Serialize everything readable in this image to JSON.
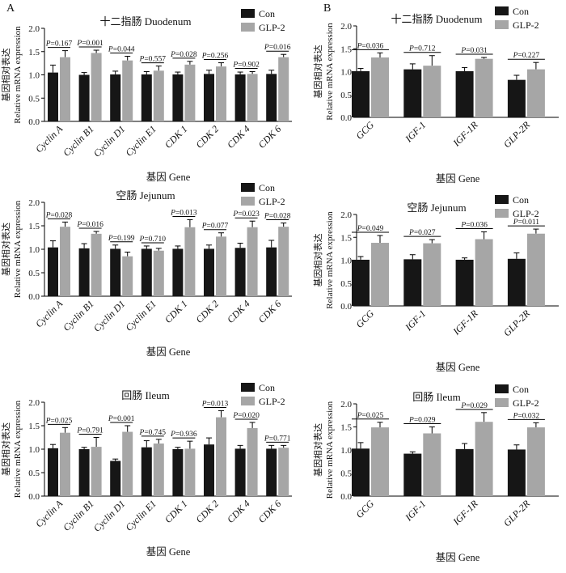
{
  "panel_labels": [
    "A",
    "B"
  ],
  "legend": {
    "con": "Con",
    "glp2": "GLP-2"
  },
  "colors": {
    "con": "#161616",
    "glp2": "#a6a6a6",
    "axis": "#000000"
  },
  "chart_data": [
    {
      "id": "A-duodenum",
      "panel": "A",
      "type": "bar",
      "title": "十二指肠 Duodenum",
      "ylabel_cn": "基因相对表达",
      "ylabel_en": "Relative mRNA expression",
      "xlabel": "基因 Gene",
      "ylim": [
        0,
        2.0
      ],
      "yticks": [
        "0.0",
        "0.5",
        "1.0",
        "1.5",
        "2.0"
      ],
      "categories": [
        "Cyclin A",
        "Cyclin B1",
        "Cyclin D1",
        "Cyclin E1",
        "CDK 1",
        "CDK 2",
        "CDK 4",
        "CDK 6"
      ],
      "series": [
        {
          "name": "Con",
          "values": [
            1.05,
            1.0,
            1.01,
            1.01,
            1.01,
            1.02,
            1.01,
            1.02
          ],
          "errors": [
            0.16,
            0.05,
            0.07,
            0.06,
            0.05,
            0.08,
            0.05,
            0.08
          ]
        },
        {
          "name": "GLP-2",
          "values": [
            1.38,
            1.47,
            1.31,
            1.09,
            1.22,
            1.18,
            1.02,
            1.38
          ],
          "errors": [
            0.14,
            0.06,
            0.09,
            0.1,
            0.07,
            0.08,
            0.05,
            0.06
          ]
        }
      ],
      "pvalues": [
        "P=0.167",
        "P=0.001",
        "P=0.044",
        "P=0.557",
        "P=0.028",
        "P=0.256",
        "P=0.902",
        "P=0.016"
      ]
    },
    {
      "id": "A-jejunum",
      "panel": "A",
      "type": "bar",
      "title": "空肠 Jejunum",
      "ylabel_cn": "基因相对表达",
      "ylabel_en": "Relative mRNA expression",
      "xlabel": "基因 Gene",
      "ylim": [
        0,
        2.0
      ],
      "yticks": [
        "0.0",
        "0.5",
        "1.0",
        "1.5",
        "2.0"
      ],
      "categories": [
        "Cyclin A",
        "Cyclin B1",
        "Cyclin D1",
        "Cyclin E1",
        "CDK 1",
        "CDK 2",
        "CDK 4",
        "CDK 6"
      ],
      "series": [
        {
          "name": "Con",
          "values": [
            1.04,
            1.02,
            1.01,
            1.01,
            1.01,
            1.01,
            1.03,
            1.04
          ],
          "errors": [
            0.14,
            0.1,
            0.08,
            0.06,
            0.06,
            0.08,
            0.1,
            0.15
          ]
        },
        {
          "name": "GLP-2",
          "values": [
            1.48,
            1.33,
            0.85,
            0.97,
            1.47,
            1.27,
            1.47,
            1.48
          ],
          "errors": [
            0.1,
            0.05,
            0.09,
            0.05,
            0.16,
            0.08,
            0.13,
            0.08
          ]
        }
      ],
      "pvalues": [
        "P=0.028",
        "P=0.016",
        "P=0.199",
        "P=0.710",
        "P=0.013",
        "P=0.077",
        "P=0.023",
        "P=0.028"
      ]
    },
    {
      "id": "A-ileum",
      "panel": "A",
      "type": "bar",
      "title": "回肠 Ileum",
      "ylabel_cn": "基因相对表达",
      "ylabel_en": "Relative mRNA expression",
      "xlabel": "基因 Gene",
      "ylim": [
        0,
        2.0
      ],
      "yticks": [
        "0.0",
        "0.5",
        "1.0",
        "1.5",
        "2.0"
      ],
      "categories": [
        "Cyclin A",
        "Cyclin B1",
        "Cyclin D1",
        "Cyclin E1",
        "CDK 1",
        "CDK 2",
        "CDK 4",
        "CDK 6"
      ],
      "series": [
        {
          "name": "Con",
          "values": [
            1.02,
            1.0,
            0.75,
            1.04,
            1.0,
            1.1,
            1.01,
            1.01
          ],
          "errors": [
            0.08,
            0.04,
            0.04,
            0.14,
            0.04,
            0.14,
            0.07,
            0.07
          ]
        },
        {
          "name": "GLP-2",
          "values": [
            1.35,
            1.05,
            1.37,
            1.12,
            1.01,
            1.68,
            1.45,
            1.03
          ],
          "errors": [
            0.11,
            0.2,
            0.13,
            0.09,
            0.16,
            0.14,
            0.12,
            0.05
          ]
        }
      ],
      "pvalues": [
        "P=0.025",
        "P=0.791",
        "P=0.001",
        "P=0.745",
        "P=0.936",
        "P=0.013",
        "P=0.020",
        "P=0.771"
      ]
    },
    {
      "id": "B-duodenum",
      "panel": "B",
      "type": "bar",
      "title": "十二指肠 Duodenum",
      "ylabel_cn": "基因相对表达",
      "ylabel_en": "Relative mRNA expression",
      "xlabel": "基因 Gene",
      "ylim": [
        0,
        2.0
      ],
      "yticks": [
        "0.0",
        "0.5",
        "1.0",
        "1.5",
        "2.0"
      ],
      "categories": [
        "GCG",
        "IGF-1",
        "IGF-1R",
        "GLP-2R"
      ],
      "series": [
        {
          "name": "Con",
          "values": [
            1.01,
            1.05,
            1.01,
            0.82
          ],
          "errors": [
            0.06,
            0.12,
            0.08,
            0.1
          ]
        },
        {
          "name": "GLP-2",
          "values": [
            1.31,
            1.13,
            1.28,
            1.05
          ],
          "errors": [
            0.1,
            0.22,
            0.03,
            0.15
          ]
        }
      ],
      "pvalues": [
        "P=0.036",
        "P=0.712",
        "P=0.031",
        "P=0.227"
      ]
    },
    {
      "id": "B-jejunum",
      "panel": "B",
      "type": "bar",
      "title": "空肠 Jejunum",
      "ylabel_cn": "基因相对表达",
      "ylabel_en": "Relative mRNA expression",
      "xlabel": "基因 Gene",
      "ylim": [
        0,
        2.0
      ],
      "yticks": [
        "0.0",
        "0.5",
        "1.0",
        "1.5",
        "2.0"
      ],
      "categories": [
        "GCG",
        "IGF-1",
        "IGF-1R",
        "GLP-2R"
      ],
      "series": [
        {
          "name": "Con",
          "values": [
            1.01,
            1.02,
            1.01,
            1.03
          ],
          "errors": [
            0.07,
            0.1,
            0.04,
            0.13
          ]
        },
        {
          "name": "GLP-2",
          "values": [
            1.38,
            1.37,
            1.46,
            1.58
          ],
          "errors": [
            0.16,
            0.08,
            0.16,
            0.1
          ]
        }
      ],
      "pvalues": [
        "P=0.049",
        "P=0.027",
        "P=0.036",
        "P=0.011"
      ]
    },
    {
      "id": "B-ileum",
      "panel": "B",
      "type": "bar",
      "title": "回肠 Ileum",
      "ylabel_cn": "基因相对表达",
      "ylabel_en": "Relative mRNA expression",
      "xlabel": "基因 Gene",
      "ylim": [
        0,
        2.0
      ],
      "yticks": [
        "0.0",
        "0.5",
        "1.0",
        "1.5",
        "2.0"
      ],
      "categories": [
        "GCG",
        "IGF-1",
        "IGF-1R",
        "GLP-2R"
      ],
      "series": [
        {
          "name": "Con",
          "values": [
            1.03,
            0.92,
            1.02,
            1.01
          ],
          "errors": [
            0.13,
            0.04,
            0.12,
            0.1
          ]
        },
        {
          "name": "GLP-2",
          "values": [
            1.49,
            1.36,
            1.61,
            1.49
          ],
          "errors": [
            0.11,
            0.14,
            0.2,
            0.1
          ]
        }
      ],
      "pvalues": [
        "P=0.025",
        "P=0.029",
        "P=0.029",
        "P=0.032"
      ]
    }
  ]
}
